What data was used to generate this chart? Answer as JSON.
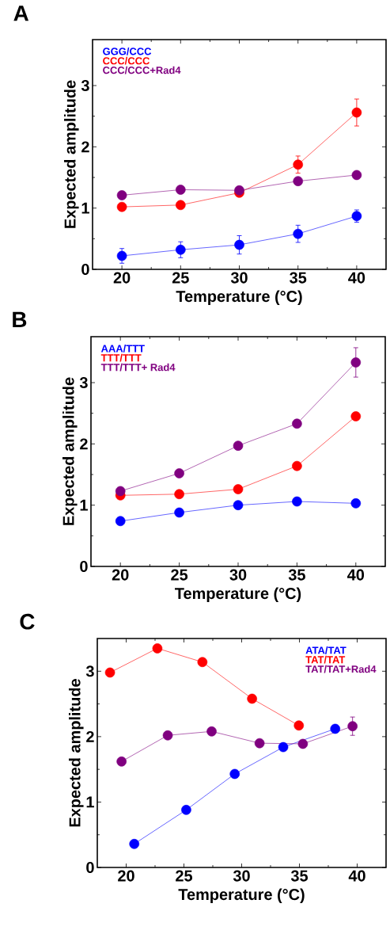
{
  "chart_data": [
    {
      "type": "line",
      "annotations": [
        "A"
      ],
      "xlabel": "Temperature (°C)",
      "ylabel": "Expected amplitude",
      "xlim": [
        17.5,
        42.5
      ],
      "ylim": [
        0,
        3.75
      ],
      "xticks": [
        20,
        25,
        30,
        35,
        40
      ],
      "yticks": [
        0,
        1,
        2,
        3
      ],
      "legend": "top left",
      "marker": "circle",
      "series": [
        {
          "name": "GGG/CCC",
          "color": "#0000ff",
          "x": [
            20,
            25,
            30,
            35,
            40
          ],
          "values": [
            0.22,
            0.32,
            0.4,
            0.58,
            0.87
          ],
          "errors": [
            0.12,
            0.13,
            0.15,
            0.14,
            0.1
          ]
        },
        {
          "name": "CCC/CCC",
          "color": "#ff0000",
          "x": [
            20,
            25,
            30,
            35,
            40
          ],
          "values": [
            1.02,
            1.05,
            1.25,
            1.71,
            2.56
          ],
          "errors": [
            null,
            null,
            null,
            0.14,
            0.22
          ]
        },
        {
          "name": "CCC/CCC+Rad4",
          "color": "#800080",
          "x": [
            20,
            25,
            30,
            35,
            40
          ],
          "values": [
            1.21,
            1.3,
            1.29,
            1.44,
            1.54
          ]
        }
      ]
    },
    {
      "type": "line",
      "annotations": [
        "B"
      ],
      "xlabel": "Temperature (°C)",
      "ylabel": "Expected amplitude",
      "xlim": [
        17.5,
        42.5
      ],
      "ylim": [
        0,
        3.75
      ],
      "xticks": [
        20,
        25,
        30,
        35,
        40
      ],
      "yticks": [
        0,
        1,
        2,
        3
      ],
      "legend": "top left",
      "marker": "circle",
      "series": [
        {
          "name": "AAA/TTT",
          "color": "#0000ff",
          "x": [
            20,
            25,
            30,
            35,
            40
          ],
          "values": [
            0.74,
            0.88,
            1.0,
            1.06,
            1.03
          ]
        },
        {
          "name": "TTT/TTT",
          "color": "#ff0000",
          "x": [
            20,
            25,
            30,
            35,
            40
          ],
          "values": [
            1.16,
            1.18,
            1.26,
            1.64,
            2.45
          ]
        },
        {
          "name": "TTT/TTT+ Rad4",
          "color": "#800080",
          "x": [
            20,
            25,
            30,
            35,
            40
          ],
          "values": [
            1.23,
            1.52,
            1.97,
            2.33,
            3.33
          ],
          "errors": [
            null,
            null,
            null,
            0.06,
            0.24
          ]
        }
      ]
    },
    {
      "type": "line",
      "annotations": [
        "C"
      ],
      "xlabel": "Temperature (°C)",
      "ylabel": "Expected amplitude",
      "xlim": [
        17.5,
        42.5
      ],
      "ylim": [
        0,
        3.5
      ],
      "xticks": [
        20,
        25,
        30,
        35,
        40
      ],
      "yticks": [
        0,
        1,
        2,
        3
      ],
      "legend": "top right",
      "marker": "circle",
      "series": [
        {
          "name": "ATA/TAT",
          "color": "#0000ff",
          "x": [
            20.7,
            25.2,
            29.4,
            33.6,
            38.1
          ],
          "values": [
            0.36,
            0.88,
            1.43,
            1.84,
            2.12
          ]
        },
        {
          "name": "TAT/TAT",
          "color": "#ff0000",
          "x": [
            18.6,
            22.7,
            26.6,
            30.9,
            34.95
          ],
          "values": [
            2.98,
            3.35,
            3.14,
            2.58,
            2.17
          ]
        },
        {
          "name": "TAT/TAT+Rad4",
          "color": "#800080",
          "x": [
            19.6,
            23.6,
            27.4,
            31.55,
            35.3,
            39.6
          ],
          "values": [
            1.62,
            2.02,
            2.08,
            1.9,
            1.89,
            2.16
          ],
          "errors": [
            null,
            null,
            null,
            null,
            null,
            0.14
          ]
        }
      ]
    }
  ]
}
